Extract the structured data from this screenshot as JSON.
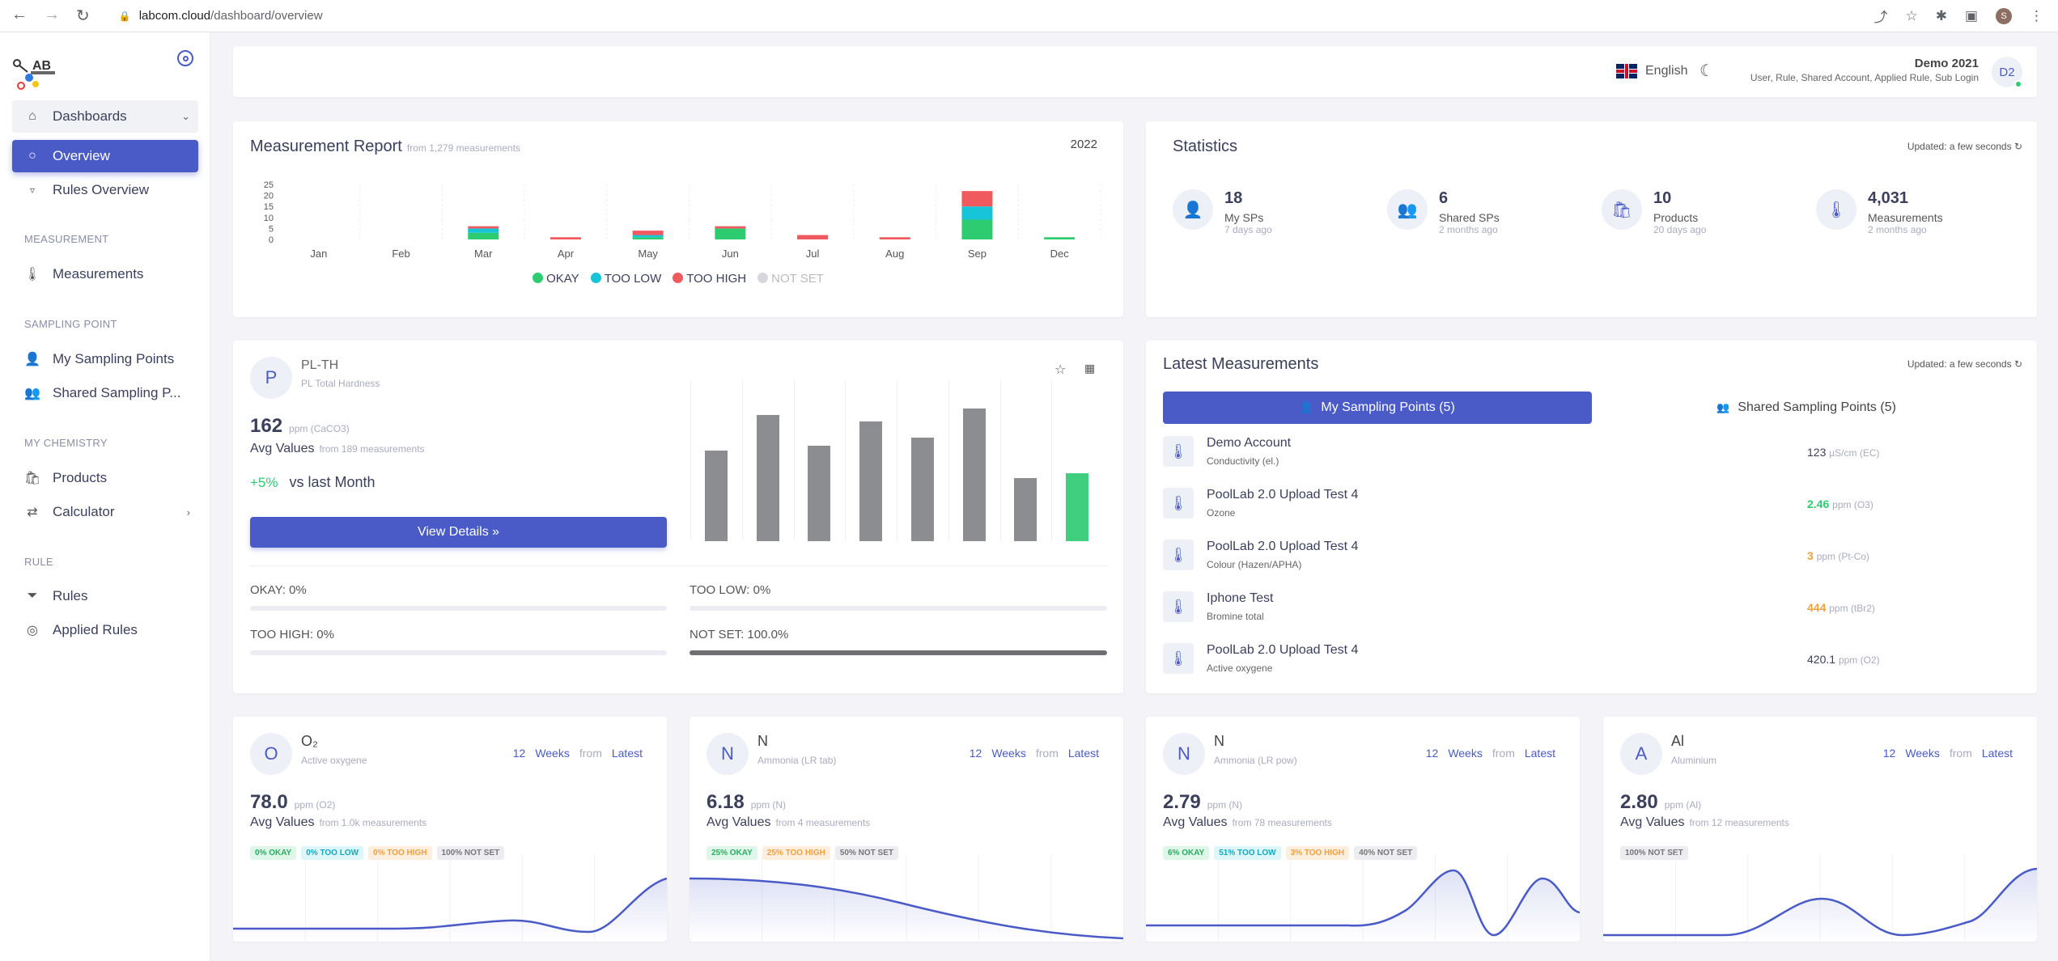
{
  "browser": {
    "url_host": "labcom.cloud",
    "url_path": "/dashboard/overview",
    "profile_initial": "S"
  },
  "sidebar": {
    "group_label": "Dashboards",
    "overview": "Overview",
    "rules_overview": "Rules Overview",
    "sections": {
      "measurement": "MEASUREMENT",
      "sampling_point": "SAMPLING POINT",
      "my_chemistry": "MY CHEMISTRY",
      "rule": "RULE"
    },
    "measurements": "Measurements",
    "my_sampling_points": "My Sampling Points",
    "shared_sampling_points": "Shared Sampling P...",
    "products": "Products",
    "calculator": "Calculator",
    "rules": "Rules",
    "applied_rules": "Applied Rules"
  },
  "topbar": {
    "language": "English",
    "user_name": "Demo 2021",
    "user_roles": "User, Rule, Shared Account, Applied Rule, Sub Login",
    "user_initials": "D2"
  },
  "report": {
    "title": "Measurement Report",
    "subtitle": "from 1,279 measurements",
    "year": "2022",
    "legend": [
      "OKAY",
      "TOO LOW",
      "TOO HIGH",
      "NOT SET"
    ],
    "colors": {
      "okay": "#2ecc71",
      "too_low": "#17c5d8",
      "too_high": "#f0595e",
      "not_set": "#d6d7de"
    }
  },
  "chart_data": {
    "type": "bar",
    "stacked": true,
    "categories": [
      "Jan",
      "Feb",
      "Mar",
      "Apr",
      "May",
      "Jun",
      "Jul",
      "Aug",
      "Sep",
      "Dec"
    ],
    "yticks": [
      "25",
      "20",
      "15",
      "10",
      "5",
      "0"
    ],
    "ylim": [
      0,
      25
    ],
    "series": [
      {
        "name": "OKAY",
        "values": [
          0,
          0,
          3,
          0,
          1,
          5,
          0,
          0,
          9,
          1
        ]
      },
      {
        "name": "TOO LOW",
        "values": [
          0,
          0,
          2,
          0,
          1,
          0,
          0,
          0,
          6,
          0
        ]
      },
      {
        "name": "TOO HIGH",
        "values": [
          0,
          0,
          1,
          1,
          2,
          1,
          2,
          1,
          7,
          0
        ]
      },
      {
        "name": "NOT SET",
        "values": [
          0,
          0,
          0,
          0,
          0,
          0,
          0,
          0,
          0,
          0
        ]
      }
    ]
  },
  "statistics": {
    "title": "Statistics",
    "updated": "Updated: a few seconds",
    "items": [
      {
        "value": "18",
        "label": "My SPs",
        "ago": "7 days ago"
      },
      {
        "value": "6",
        "label": "Shared SPs",
        "ago": "2 months ago"
      },
      {
        "value": "10",
        "label": "Products",
        "ago": "20 days ago"
      },
      {
        "value": "4,031",
        "label": "Measurements",
        "ago": "2 months ago"
      }
    ]
  },
  "sp_card": {
    "letter": "P",
    "name": "PL-TH",
    "desc": "PL Total Hardness",
    "value": "162",
    "unit": "ppm (CaCO3)",
    "avg_label": "Avg Values",
    "from": "from 189 measurements",
    "change": "+5%",
    "change_label": "vs last Month",
    "button": "View Details »",
    "okay": "OKAY: 0%",
    "too_low": "TOO LOW: 0%",
    "too_high": "TOO HIGH: 0%",
    "not_set": "NOT SET: 100.0%",
    "bars": [
      0.56,
      0.78,
      0.59,
      0.74,
      0.64,
      0.82,
      0.39,
      0.42
    ]
  },
  "latest": {
    "title": "Latest Measurements",
    "updated": "Updated: a few seconds",
    "tab_my": "My Sampling Points (5)",
    "tab_shared": "Shared Sampling Points (5)",
    "rows": [
      {
        "name": "Demo Account",
        "param": "Conductivity (el.)",
        "value": "123",
        "unit": "µS/cm (EC)",
        "color": "#3b3f5c"
      },
      {
        "name": "PoolLab 2.0 Upload Test 4",
        "param": "Ozone",
        "value": "2.46",
        "unit": "ppm (O3)",
        "color": "#2ecc71"
      },
      {
        "name": "PoolLab 2.0 Upload Test 4",
        "param": "Colour (Hazen/APHA)",
        "value": "3",
        "unit": "ppm (Pt-Co)",
        "color": "#f0a03c"
      },
      {
        "name": "Iphone Test",
        "param": "Bromine total",
        "value": "444",
        "unit": "ppm (tBr2)",
        "color": "#f0a03c"
      },
      {
        "name": "PoolLab 2.0 Upload Test 4",
        "param": "Active oxygene",
        "value": "420.1",
        "unit": "ppm (O2)",
        "color": "#3b3f5c"
      }
    ]
  },
  "mini": [
    {
      "letter": "O",
      "name": "O₂",
      "desc": "Active oxygene",
      "weeks_n": "12",
      "weeks": "Weeks",
      "from_w": "from",
      "latest": "Latest",
      "value": "78.0",
      "unit": "ppm (O2)",
      "avg": "Avg Values",
      "from": "from 1.0k measurements",
      "pills": [
        {
          "t": "0% OKAY",
          "bg": "#dff7e9",
          "fg": "#27ae60"
        },
        {
          "t": "0% TOO LOW",
          "bg": "#dcf6fa",
          "fg": "#13a9bb"
        },
        {
          "t": "0% TOO HIGH",
          "bg": "#fdeede",
          "fg": "#f0a03c"
        },
        {
          "t": "100% NOT SET",
          "bg": "#ececf1",
          "fg": "#777"
        }
      ]
    },
    {
      "letter": "N",
      "name": "N",
      "desc": "Ammonia (LR tab)",
      "weeks_n": "12",
      "weeks": "Weeks",
      "from_w": "from",
      "latest": "Latest",
      "value": "6.18",
      "unit": "ppm (N)",
      "avg": "Avg Values",
      "from": "from 4 measurements",
      "pills": [
        {
          "t": "25% OKAY",
          "bg": "#dff7e9",
          "fg": "#27ae60"
        },
        {
          "t": "25% TOO HIGH",
          "bg": "#fdeede",
          "fg": "#f0a03c"
        },
        {
          "t": "50% NOT SET",
          "bg": "#ececf1",
          "fg": "#777"
        }
      ]
    },
    {
      "letter": "N",
      "name": "N",
      "desc": "Ammonia (LR pow)",
      "weeks_n": "12",
      "weeks": "Weeks",
      "from_w": "from",
      "latest": "Latest",
      "value": "2.79",
      "unit": "ppm (N)",
      "avg": "Avg Values",
      "from": "from 78 measurements",
      "pills": [
        {
          "t": "6% OKAY",
          "bg": "#dff7e9",
          "fg": "#27ae60"
        },
        {
          "t": "51% TOO LOW",
          "bg": "#dcf6fa",
          "fg": "#13a9bb"
        },
        {
          "t": "3% TOO HIGH",
          "bg": "#fdeede",
          "fg": "#f0a03c"
        },
        {
          "t": "40% NOT SET",
          "bg": "#ececf1",
          "fg": "#777"
        }
      ]
    },
    {
      "letter": "A",
      "name": "Al",
      "desc": "Aluminium",
      "weeks_n": "12",
      "weeks": "Weeks",
      "from_w": "from",
      "latest": "Latest",
      "value": "2.80",
      "unit": "ppm (Al)",
      "avg": "Avg Values",
      "from": "from 12 measurements",
      "pills": [
        {
          "t": "100% NOT SET",
          "bg": "#ececf1",
          "fg": "#777"
        }
      ]
    }
  ]
}
